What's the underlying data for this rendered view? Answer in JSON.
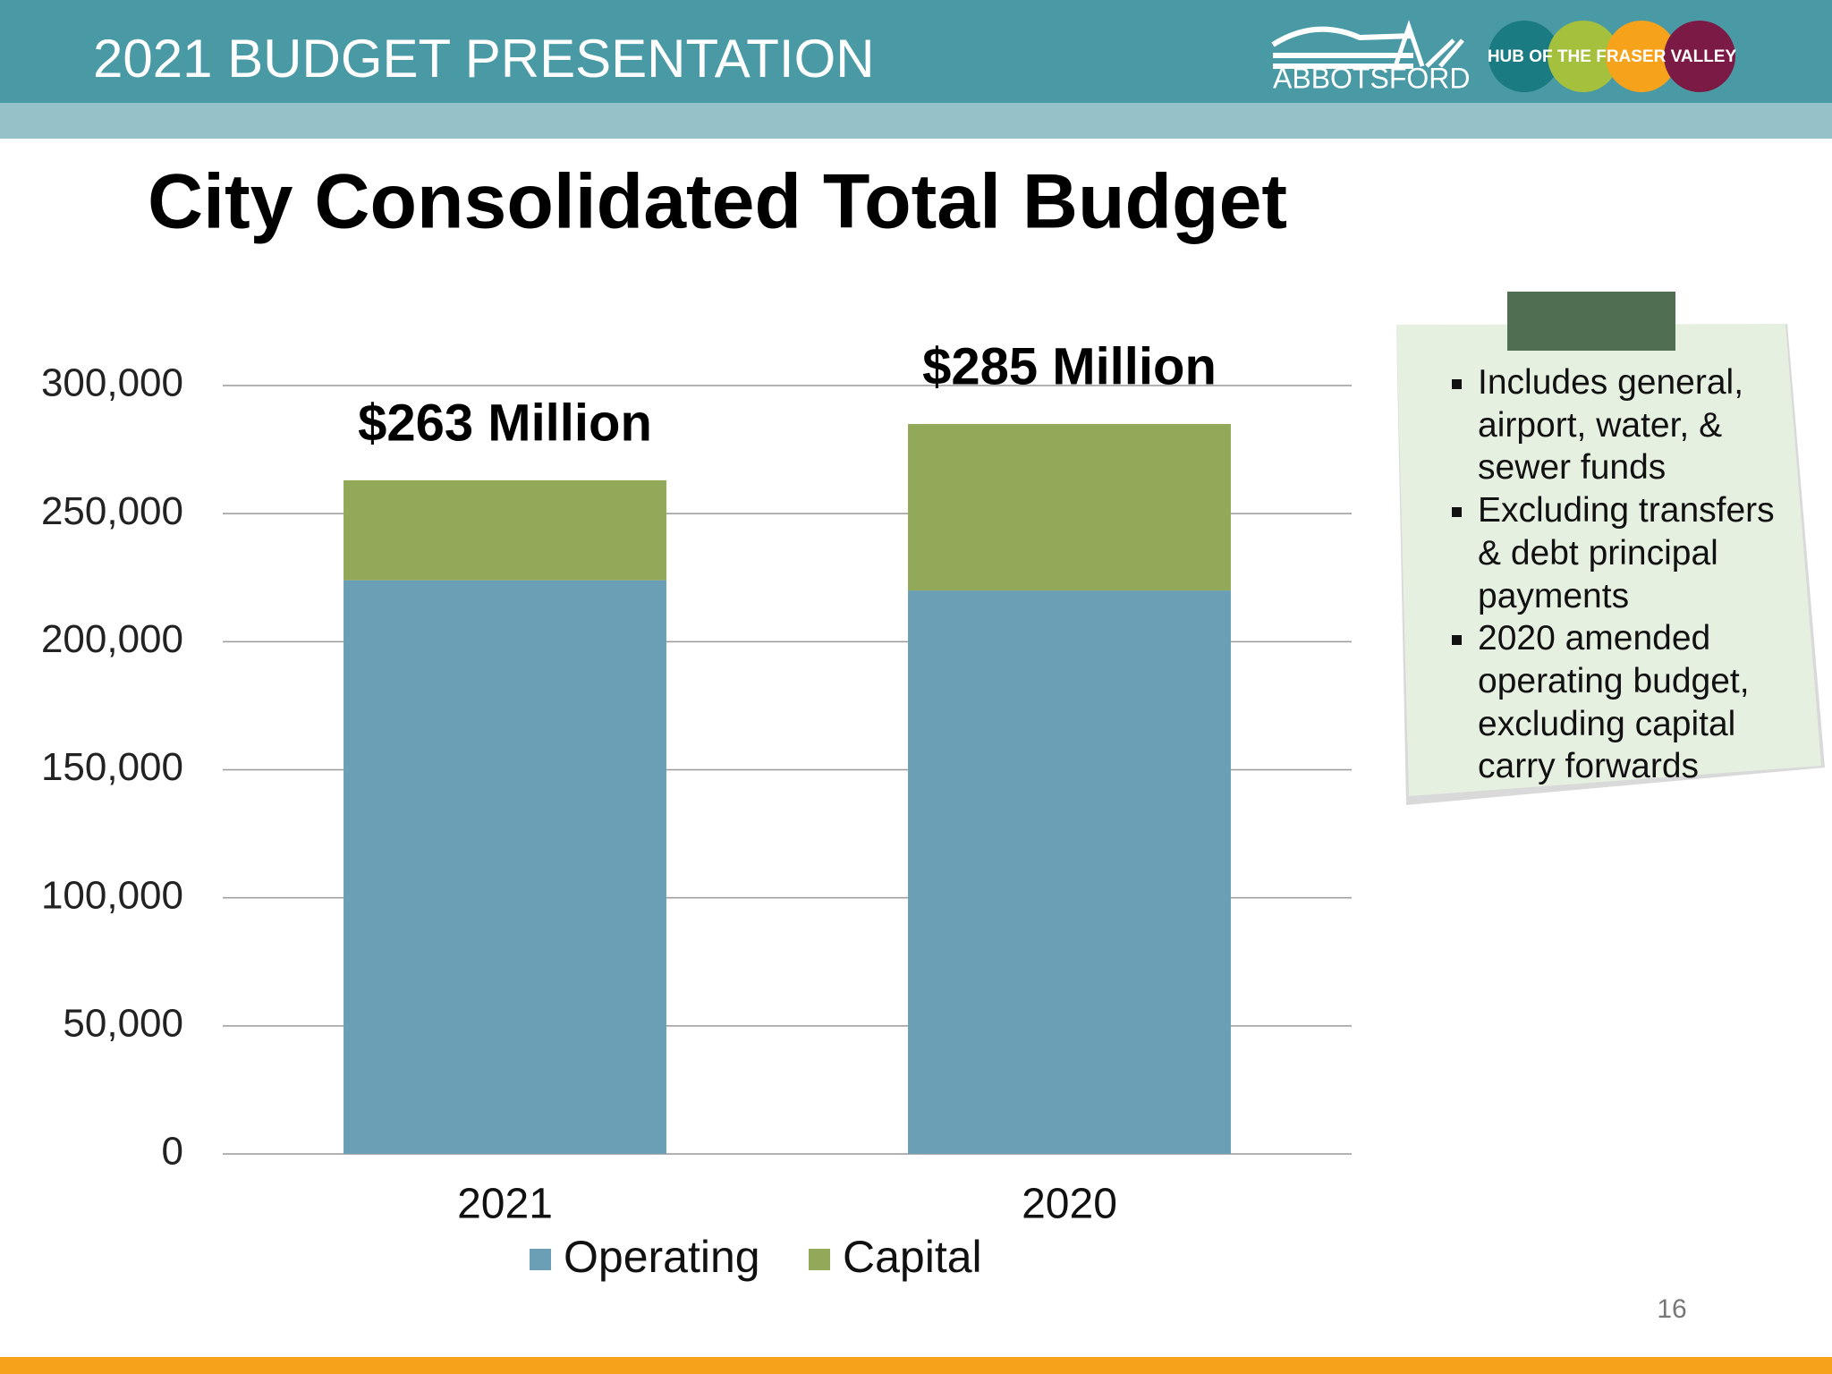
{
  "header": {
    "title": "2021 BUDGET PRESENTATION",
    "logo_text": "ABBOTSFORD",
    "logo_tagline": "HUB OF THE FRASER VALLEY"
  },
  "chart_data": {
    "type": "stacked_bar",
    "title": "City Consolidated Total Budget",
    "categories": [
      "2021",
      "2020"
    ],
    "series": [
      {
        "name": "Operating",
        "color": "#6b9fb6",
        "values": [
          224000,
          220000
        ]
      },
      {
        "name": "Capital",
        "color": "#93a95a",
        "values": [
          39000,
          65000
        ]
      }
    ],
    "annotations": [
      "$263 Million",
      "$285 Million"
    ],
    "ylim": [
      0,
      300000
    ],
    "yticks": [
      0,
      {
        "value": 50000,
        "label": "50,000"
      },
      {
        "value": 100000,
        "label": "100,000"
      },
      {
        "value": 150000,
        "label": "150,000"
      },
      {
        "value": 200000,
        "label": "200,000"
      },
      {
        "value": 250000,
        "label": "250,000"
      },
      {
        "value": 300000,
        "label": "300,000"
      }
    ],
    "grid": true,
    "legend": "bottom"
  },
  "notes": [
    "Includes general, airport, water, & sewer funds",
    "Excluding transfers & debt principal payments",
    "2020 amended operating budget, excluding capital carry forwards"
  ],
  "page_number": "16"
}
